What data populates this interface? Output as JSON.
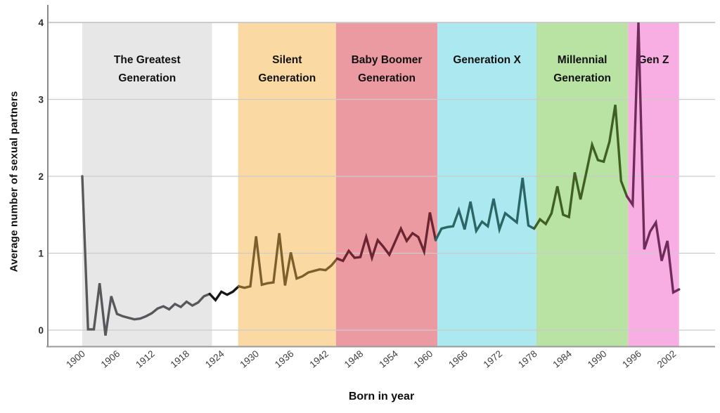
{
  "figure": {
    "x_axis_title": "Born in year",
    "y_axis_title": "Average number of sexual partners"
  },
  "chart_data": {
    "type": "line",
    "title": "",
    "xlabel": "Born in year",
    "ylabel": "Average number of sexual partners",
    "x_ticks": [
      1900,
      1906,
      1912,
      1918,
      1924,
      1930,
      1936,
      1942,
      1948,
      1954,
      1960,
      1966,
      1972,
      1978,
      1984,
      1990,
      1996,
      2002
    ],
    "y_ticks": [
      0,
      1,
      2,
      3,
      4
    ],
    "xlim": [
      1894,
      2008
    ],
    "ylim": [
      -0.21,
      4.02
    ],
    "grid": true,
    "legend_position": "none",
    "between_band_line_color": "#161616",
    "grid_color": "#cbcbcb",
    "axis_color": "#8a8a8a",
    "bands": [
      {
        "label_lines": [
          "The Greatest",
          "Generation"
        ],
        "start": 1900.0,
        "end": 1922.4,
        "band_color": "#e8e7e8",
        "line_color": "#58585a"
      },
      {
        "label_lines": [
          "Silent",
          "Generation"
        ],
        "start": 1926.9,
        "end": 1943.8,
        "band_color": "#fbd9a3",
        "line_color": "#7d5f2b"
      },
      {
        "label_lines": [
          "Baby Boomer",
          "Generation"
        ],
        "start": 1943.8,
        "end": 1961.3,
        "band_color": "#ec9aa2",
        "line_color": "#6a2531"
      },
      {
        "label_lines": [
          "Generation X"
        ],
        "start": 1961.3,
        "end": 1978.4,
        "band_color": "#abe8f0",
        "line_color": "#2b6566"
      },
      {
        "label_lines": [
          "Millennial",
          "Generation"
        ],
        "start": 1978.4,
        "end": 1994.2,
        "band_color": "#b8e3a2",
        "line_color": "#3f6020"
      },
      {
        "label_lines": [
          "Gen Z"
        ],
        "start": 1994.2,
        "end": 2003.0,
        "band_color": "#f9aee3",
        "line_color": "#6f2c5a"
      }
    ],
    "series": [
      {
        "name": "average-number-of-sexual-partners",
        "x": [
          1900,
          1901,
          1902,
          1903,
          1904,
          1905,
          1906,
          1907,
          1908,
          1909,
          1910,
          1911,
          1912,
          1913,
          1914,
          1915,
          1916,
          1917,
          1918,
          1919,
          1920,
          1921,
          1922,
          1923,
          1924,
          1925,
          1926,
          1927,
          1928,
          1929,
          1930,
          1931,
          1932,
          1933,
          1934,
          1935,
          1936,
          1937,
          1938,
          1939,
          1940,
          1941,
          1942,
          1943,
          1944,
          1945,
          1946,
          1947,
          1948,
          1949,
          1950,
          1951,
          1952,
          1953,
          1954,
          1955,
          1956,
          1957,
          1958,
          1959,
          1960,
          1961,
          1962,
          1963,
          1964,
          1965,
          1966,
          1967,
          1968,
          1969,
          1970,
          1971,
          1972,
          1973,
          1974,
          1975,
          1976,
          1977,
          1978,
          1979,
          1980,
          1981,
          1982,
          1983,
          1984,
          1985,
          1986,
          1987,
          1988,
          1989,
          1990,
          1991,
          1992,
          1993,
          1994,
          1995,
          1996,
          1997,
          1998,
          1999,
          2000,
          2001,
          2002,
          2003
        ],
        "y": [
          2.0,
          0.01,
          0.01,
          0.61,
          -0.07,
          0.44,
          0.21,
          0.18,
          0.16,
          0.14,
          0.15,
          0.18,
          0.22,
          0.28,
          0.31,
          0.27,
          0.34,
          0.3,
          0.37,
          0.32,
          0.36,
          0.44,
          0.47,
          0.39,
          0.5,
          0.46,
          0.5,
          0.57,
          0.55,
          0.57,
          1.22,
          0.59,
          0.61,
          0.62,
          1.26,
          0.58,
          1.01,
          0.67,
          0.7,
          0.75,
          0.77,
          0.79,
          0.78,
          0.84,
          0.93,
          0.9,
          1.03,
          0.94,
          0.95,
          1.21,
          0.94,
          1.17,
          1.08,
          0.98,
          1.15,
          1.32,
          1.16,
          1.26,
          1.21,
          1.02,
          1.53,
          1.17,
          1.32,
          1.34,
          1.35,
          1.56,
          1.31,
          1.67,
          1.29,
          1.41,
          1.35,
          1.71,
          1.31,
          1.52,
          1.46,
          1.4,
          1.98,
          1.36,
          1.32,
          1.44,
          1.38,
          1.52,
          1.87,
          1.5,
          1.47,
          2.05,
          1.7,
          2.05,
          2.41,
          2.21,
          2.19,
          2.45,
          2.93,
          1.94,
          1.74,
          1.63,
          4.0,
          1.05,
          1.28,
          1.4,
          0.9,
          1.16,
          0.49,
          0.53
        ]
      }
    ]
  }
}
